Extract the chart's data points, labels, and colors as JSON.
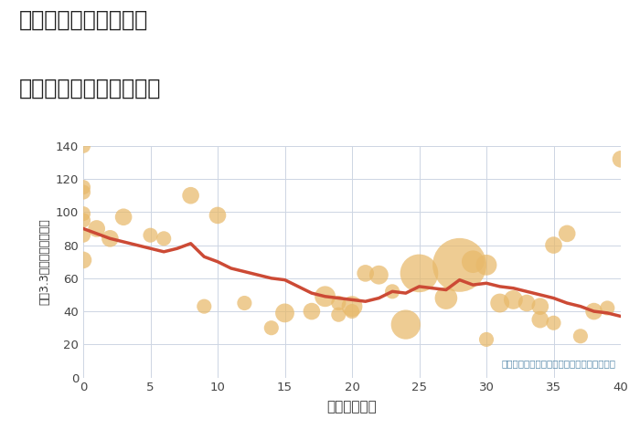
{
  "title_line1": "大阪府堺市東区丈六の",
  "title_line2": "築年数別中古戸建て価格",
  "xlabel": "築年数（年）",
  "ylabel": "坪（3.3㎡）単価（万円）",
  "annotation": "円の大きさは、取引のあった物件面積を示す",
  "xlim": [
    0,
    40
  ],
  "ylim": [
    0,
    140
  ],
  "xticks": [
    0,
    5,
    10,
    15,
    20,
    25,
    30,
    35,
    40
  ],
  "yticks": [
    0,
    20,
    40,
    60,
    80,
    100,
    120,
    140
  ],
  "bg_color": "#ffffff",
  "grid_color": "#cdd5e3",
  "bubble_color": "#e8b96a",
  "bubble_alpha": 0.72,
  "line_color": "#cc4a35",
  "line_width": 2.5,
  "title_color": "#222222",
  "annotation_color": "#5588aa",
  "scatter_x": [
    0,
    0,
    0,
    0,
    0,
    0,
    0,
    1,
    2,
    3,
    5,
    6,
    8,
    9,
    10,
    12,
    14,
    15,
    17,
    18,
    19,
    19,
    20,
    20,
    21,
    22,
    23,
    24,
    25,
    27,
    28,
    29,
    30,
    30,
    31,
    32,
    33,
    34,
    34,
    35,
    35,
    36,
    37,
    38,
    39,
    40
  ],
  "scatter_y": [
    140,
    115,
    112,
    99,
    95,
    86,
    71,
    90,
    84,
    97,
    86,
    84,
    110,
    43,
    98,
    45,
    30,
    39,
    40,
    49,
    38,
    45,
    40,
    43,
    63,
    62,
    52,
    32,
    63,
    48,
    68,
    70,
    23,
    68,
    45,
    47,
    45,
    43,
    35,
    80,
    33,
    87,
    25,
    40,
    42,
    132
  ],
  "scatter_size": [
    30,
    30,
    30,
    30,
    30,
    30,
    40,
    40,
    40,
    40,
    30,
    30,
    40,
    30,
    40,
    30,
    30,
    50,
    40,
    60,
    30,
    30,
    30,
    60,
    40,
    50,
    30,
    120,
    200,
    70,
    400,
    70,
    30,
    60,
    50,
    50,
    40,
    40,
    40,
    40,
    30,
    40,
    30,
    40,
    30,
    40
  ],
  "line_x": [
    0,
    1,
    2,
    3,
    4,
    5,
    6,
    7,
    8,
    9,
    10,
    11,
    12,
    13,
    14,
    15,
    16,
    17,
    18,
    19,
    20,
    21,
    22,
    23,
    24,
    25,
    26,
    27,
    28,
    29,
    30,
    31,
    32,
    33,
    34,
    35,
    36,
    37,
    38,
    39,
    40
  ],
  "line_y": [
    90,
    87,
    84,
    82,
    80,
    78,
    76,
    78,
    81,
    73,
    70,
    66,
    64,
    62,
    60,
    59,
    55,
    51,
    49,
    48,
    47,
    46,
    48,
    52,
    51,
    55,
    54,
    53,
    59,
    56,
    57,
    55,
    54,
    52,
    50,
    48,
    45,
    43,
    40,
    39,
    37
  ]
}
